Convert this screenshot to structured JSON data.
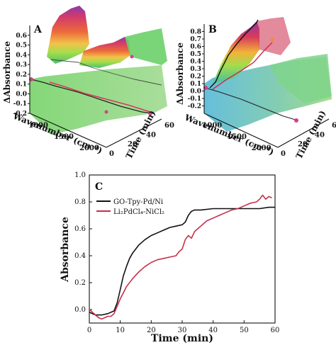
{
  "chart_data": [
    {
      "type": "area",
      "panel": "A",
      "projection": "3d-waterfall",
      "ylabel": "ΔAbsorbance",
      "xlabel": "Wavenumber (cm⁻¹)",
      "zlabel": "Time (min)",
      "ylim": [
        -0.2,
        0.7
      ],
      "y_ticks": [
        "-0.2",
        "-0.1",
        "0.0",
        "0.1",
        "0.2",
        "0.3",
        "0.4",
        "0.5",
        "0.6"
      ],
      "x_ticks": [
        "1000",
        "1500",
        "2000"
      ],
      "z_ticks": [
        "0",
        "20",
        "40",
        "60"
      ],
      "colors": [
        "#7a3a9a",
        "#c8265a",
        "#e8412c",
        "#f2a03a",
        "#f4e64a",
        "#9fdc4a",
        "#3ec36a",
        "#48c7c7"
      ]
    },
    {
      "type": "area",
      "panel": "B",
      "projection": "3d-waterfall",
      "ylabel": "ΔAbsorbance",
      "xlabel": "Wavenumber (cm⁻¹)",
      "zlabel": "Time (min)",
      "ylim": [
        -0.3,
        0.9
      ],
      "y_ticks": [
        "-0.2",
        "-0.1",
        "0.0",
        "0.1",
        "0.2",
        "0.3",
        "0.4",
        "0.5",
        "0.6",
        "0.7",
        "0.8"
      ],
      "x_ticks": [
        "1000",
        "1500",
        "2000"
      ],
      "z_ticks": [
        "0",
        "20",
        "40",
        "60"
      ],
      "colors": [
        "#7a3a9a",
        "#c8265a",
        "#e8412c",
        "#f2a03a",
        "#f4e64a",
        "#9fdc4a",
        "#3ec36a",
        "#48a7d8"
      ]
    },
    {
      "type": "line",
      "panel": "C",
      "xlabel": "Time (min)",
      "ylabel": "Absorbance",
      "xlim": [
        0,
        60
      ],
      "ylim": [
        -0.1,
        1.0
      ],
      "x_ticks": [
        0,
        10,
        20,
        30,
        40,
        50,
        60
      ],
      "y_ticks": [
        "0.0",
        "0.2",
        "0.4",
        "0.6",
        "0.8",
        "1.0"
      ],
      "legend_position": "top-left",
      "series": [
        {
          "name": "GO-Tpy-Pd/Ni",
          "color": "#111111",
          "x": [
            0,
            2,
            4,
            6,
            8,
            9,
            10,
            11,
            12,
            13,
            14,
            15,
            16,
            18,
            20,
            22,
            24,
            26,
            28,
            30,
            31,
            32,
            33,
            34,
            36,
            40,
            45,
            50,
            55,
            58,
            60
          ],
          "y": [
            -0.02,
            -0.04,
            -0.04,
            -0.03,
            -0.01,
            0.05,
            0.15,
            0.25,
            0.32,
            0.38,
            0.42,
            0.45,
            0.48,
            0.52,
            0.55,
            0.57,
            0.59,
            0.61,
            0.62,
            0.63,
            0.65,
            0.7,
            0.73,
            0.74,
            0.74,
            0.75,
            0.75,
            0.75,
            0.75,
            0.76,
            0.76
          ]
        },
        {
          "name": "Li₂PdCl₄-NiCl₂",
          "color": "#c4304a",
          "x": [
            0,
            2,
            3,
            4,
            5,
            6,
            7,
            8,
            10,
            12,
            14,
            16,
            18,
            20,
            22,
            24,
            26,
            28,
            29,
            30,
            31,
            32,
            33,
            34,
            35,
            36,
            37,
            38,
            40,
            42,
            44,
            46,
            48,
            50,
            52,
            54,
            55,
            56,
            57,
            58,
            59
          ],
          "y": [
            0.0,
            -0.04,
            -0.06,
            -0.07,
            -0.06,
            -0.05,
            -0.05,
            -0.03,
            0.08,
            0.17,
            0.23,
            0.28,
            0.32,
            0.35,
            0.37,
            0.38,
            0.39,
            0.4,
            0.43,
            0.45,
            0.52,
            0.55,
            0.53,
            0.58,
            0.6,
            0.62,
            0.64,
            0.66,
            0.68,
            0.7,
            0.72,
            0.74,
            0.75,
            0.77,
            0.79,
            0.8,
            0.82,
            0.85,
            0.82,
            0.84,
            0.83
          ]
        }
      ]
    }
  ]
}
